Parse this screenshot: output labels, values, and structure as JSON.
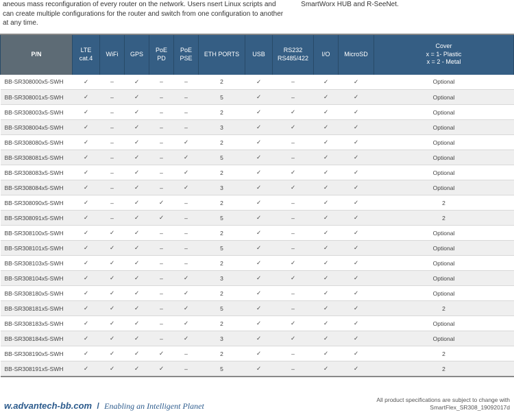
{
  "top": {
    "left": "aneous mass reconfiguration of every router on the network. Users\nnsert Linux scripts and can create multiple configurations for the\nrouter and switch from one configuration to another at any time.",
    "right": "SmartWorx HUB and R-SeeNet."
  },
  "check": "✓",
  "dash": "–",
  "columns": [
    "P/N",
    "LTE\ncat.4",
    "WiFi",
    "GPS",
    "PoE\nPD",
    "PoE\nPSE",
    "ETH PORTS",
    "USB",
    "RS232\nRS485/422",
    "I/O",
    "MicroSD",
    "Cover\nx = 1- Plastic\nx = 2 - Metal"
  ],
  "rows": [
    {
      "pn": "BB-SR308000x5-SWH",
      "c": [
        "y",
        "n",
        "y",
        "n",
        "n",
        "2",
        "y",
        "n",
        "y",
        "y",
        "Optional"
      ]
    },
    {
      "pn": "BB-SR308001x5-SWH",
      "c": [
        "y",
        "n",
        "y",
        "n",
        "n",
        "5",
        "y",
        "n",
        "y",
        "y",
        "Optional"
      ]
    },
    {
      "pn": "BB-SR308003x5-SWH",
      "c": [
        "y",
        "n",
        "y",
        "n",
        "n",
        "2",
        "y",
        "y",
        "y",
        "y",
        "Optional"
      ]
    },
    {
      "pn": "BB-SR308004x5-SWH",
      "c": [
        "y",
        "n",
        "y",
        "n",
        "n",
        "3",
        "y",
        "y",
        "y",
        "y",
        "Optional"
      ]
    },
    {
      "pn": "BB-SR308080x5-SWH",
      "c": [
        "y",
        "n",
        "y",
        "n",
        "y",
        "2",
        "y",
        "n",
        "y",
        "y",
        "Optional"
      ]
    },
    {
      "pn": "BB-SR308081x5-SWH",
      "c": [
        "y",
        "n",
        "y",
        "n",
        "y",
        "5",
        "y",
        "n",
        "y",
        "y",
        "Optional"
      ]
    },
    {
      "pn": "BB-SR308083x5-SWH",
      "c": [
        "y",
        "n",
        "y",
        "n",
        "y",
        "2",
        "y",
        "y",
        "y",
        "y",
        "Optional"
      ]
    },
    {
      "pn": "BB-SR308084x5-SWH",
      "c": [
        "y",
        "n",
        "y",
        "n",
        "y",
        "3",
        "y",
        "y",
        "y",
        "y",
        "Optional"
      ]
    },
    {
      "pn": "BB-SR308090x5-SWH",
      "c": [
        "y",
        "n",
        "y",
        "y",
        "n",
        "2",
        "y",
        "n",
        "y",
        "y",
        "2"
      ]
    },
    {
      "pn": "BB-SR308091x5-SWH",
      "c": [
        "y",
        "n",
        "y",
        "y",
        "n",
        "5",
        "y",
        "n",
        "y",
        "y",
        "2"
      ]
    },
    {
      "pn": "BB-SR308100x5-SWH",
      "c": [
        "y",
        "y",
        "y",
        "n",
        "n",
        "2",
        "y",
        "n",
        "y",
        "y",
        "Optional"
      ]
    },
    {
      "pn": "BB-SR308101x5-SWH",
      "c": [
        "y",
        "y",
        "y",
        "n",
        "n",
        "5",
        "y",
        "n",
        "y",
        "y",
        "Optional"
      ]
    },
    {
      "pn": "BB-SR308103x5-SWH",
      "c": [
        "y",
        "y",
        "y",
        "n",
        "n",
        "2",
        "y",
        "y",
        "y",
        "y",
        "Optional"
      ]
    },
    {
      "pn": "BB-SR308104x5-SWH",
      "c": [
        "y",
        "y",
        "y",
        "n",
        "y",
        "3",
        "y",
        "y",
        "y",
        "y",
        "Optional"
      ]
    },
    {
      "pn": "BB-SR308180x5-SWH",
      "c": [
        "y",
        "y",
        "y",
        "n",
        "y",
        "2",
        "y",
        "n",
        "y",
        "y",
        "Optional"
      ]
    },
    {
      "pn": "BB-SR308181x5-SWH",
      "c": [
        "y",
        "y",
        "y",
        "n",
        "y",
        "5",
        "y",
        "n",
        "y",
        "y",
        "2"
      ]
    },
    {
      "pn": "BB-SR308183x5-SWH",
      "c": [
        "y",
        "y",
        "y",
        "n",
        "y",
        "2",
        "y",
        "y",
        "y",
        "y",
        "Optional"
      ]
    },
    {
      "pn": "BB-SR308184x5-SWH",
      "c": [
        "y",
        "y",
        "y",
        "n",
        "y",
        "3",
        "y",
        "y",
        "y",
        "y",
        "Optional"
      ]
    },
    {
      "pn": "BB-SR308190x5-SWH",
      "c": [
        "y",
        "y",
        "y",
        "y",
        "n",
        "2",
        "y",
        "n",
        "y",
        "y",
        "2"
      ]
    },
    {
      "pn": "BB-SR308191x5-SWH",
      "c": [
        "y",
        "y",
        "y",
        "y",
        "n",
        "5",
        "y",
        "n",
        "y",
        "y",
        "2"
      ]
    }
  ],
  "footer": {
    "url": "w.advantech-bb.com",
    "sep": "/",
    "tagline": "Enabling an Intelligent Planet",
    "note1": "All product specifications are subject to change with",
    "note2": "SmartFlex_SR308_19092017d"
  }
}
